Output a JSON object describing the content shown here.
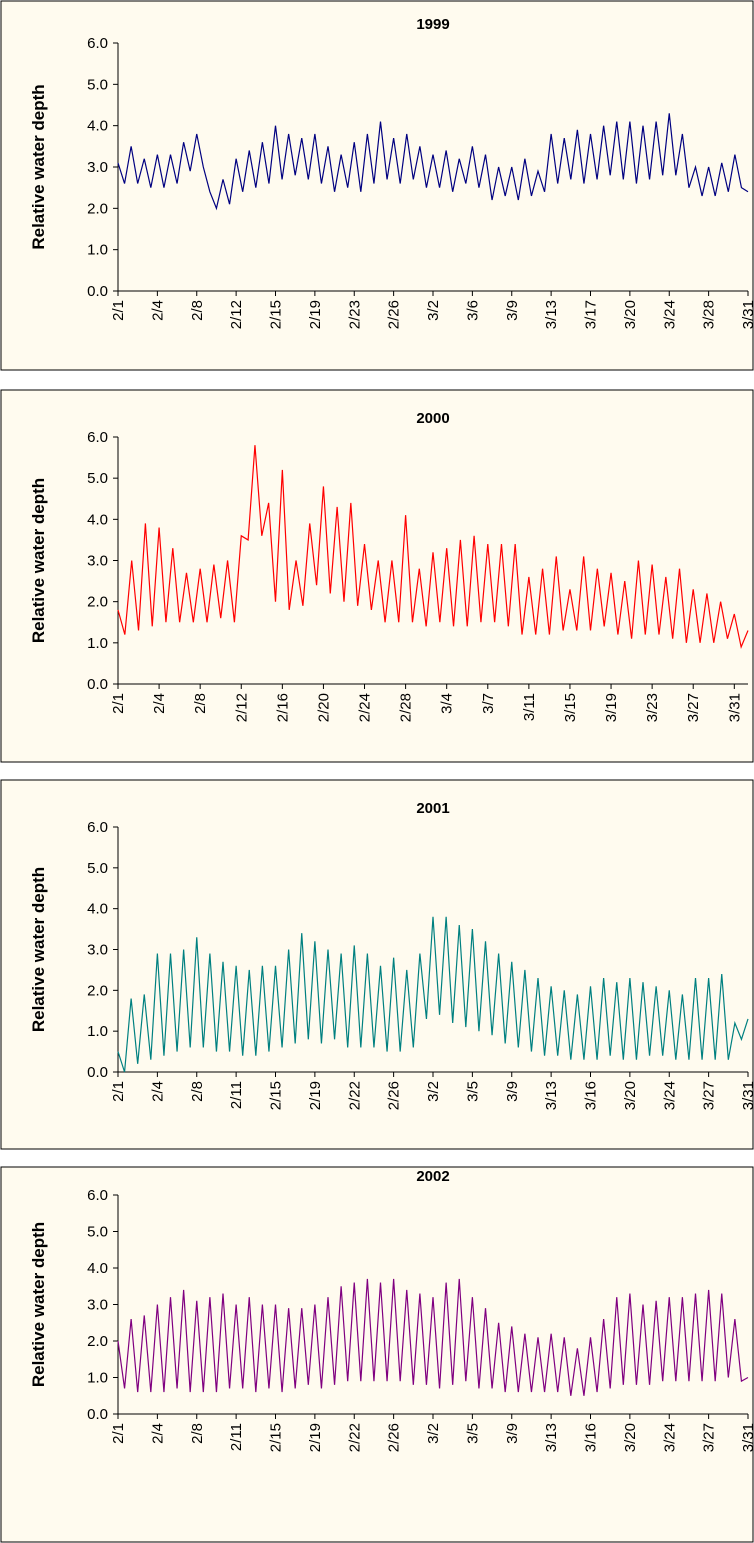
{
  "chart_data": [
    {
      "type": "line",
      "title": "1999",
      "ylabel": "Relative water depth",
      "color": "#000080",
      "ylim": [
        0,
        6
      ],
      "yticks": [
        {
          "value": 0,
          "label": "0.0"
        },
        {
          "value": 1,
          "label": "1.0"
        },
        {
          "value": 2,
          "label": "2.0"
        },
        {
          "value": 3,
          "label": "3.0"
        },
        {
          "value": 4,
          "label": "4.0"
        },
        {
          "value": 5,
          "label": "5.0"
        },
        {
          "value": 6,
          "label": "6.0"
        }
      ],
      "categories": [
        "2/1",
        null,
        null,
        null,
        null,
        null,
        "2/4",
        null,
        null,
        null,
        null,
        null,
        "2/8",
        null,
        null,
        null,
        null,
        null,
        "2/12",
        null,
        null,
        null,
        null,
        null,
        "2/15",
        null,
        null,
        null,
        null,
        null,
        "2/19",
        null,
        null,
        null,
        null,
        null,
        "2/23",
        null,
        null,
        null,
        null,
        null,
        "2/26",
        null,
        null,
        null,
        null,
        null,
        "3/2",
        null,
        null,
        null,
        null,
        null,
        "3/6",
        null,
        null,
        null,
        null,
        null,
        "3/9",
        null,
        null,
        null,
        null,
        null,
        "3/13",
        null,
        null,
        null,
        null,
        null,
        "3/17",
        null,
        null,
        null,
        null,
        null,
        "3/20",
        null,
        null,
        null,
        null,
        null,
        "3/24",
        null,
        null,
        null,
        null,
        null,
        "3/28",
        null,
        null,
        null,
        null,
        null,
        "3/31"
      ],
      "values": [
        3.1,
        2.6,
        3.5,
        2.6,
        3.2,
        2.5,
        3.3,
        2.5,
        3.3,
        2.6,
        3.6,
        2.9,
        3.8,
        3.0,
        2.4,
        2.0,
        2.7,
        2.1,
        3.2,
        2.4,
        3.4,
        2.5,
        3.6,
        2.6,
        4.0,
        2.7,
        3.8,
        2.8,
        3.7,
        2.7,
        3.8,
        2.6,
        3.5,
        2.4,
        3.3,
        2.5,
        3.6,
        2.4,
        3.8,
        2.6,
        4.1,
        2.7,
        3.7,
        2.6,
        3.8,
        2.7,
        3.5,
        2.5,
        3.3,
        2.5,
        3.4,
        2.4,
        3.2,
        2.6,
        3.5,
        2.5,
        3.3,
        2.2,
        3.0,
        2.3,
        3.0,
        2.2,
        3.2,
        2.3,
        2.9,
        2.4,
        3.8,
        2.6,
        3.7,
        2.7,
        3.9,
        2.6,
        3.8,
        2.7,
        4.0,
        2.8,
        4.1,
        2.7,
        4.1,
        2.6,
        4.0,
        2.7,
        4.1,
        2.8,
        4.3,
        2.8,
        3.8,
        2.5,
        3.0,
        2.3,
        3.0,
        2.3,
        3.1,
        2.4,
        3.3,
        2.5,
        2.4
      ]
    },
    {
      "type": "line",
      "title": "2000",
      "ylabel": "Relative water depth",
      "color": "#ff0000",
      "ylim": [
        0,
        6
      ],
      "yticks": [
        {
          "value": 0,
          "label": "0.0"
        },
        {
          "value": 1,
          "label": "1.0"
        },
        {
          "value": 2,
          "label": "2.0"
        },
        {
          "value": 3,
          "label": "3.0"
        },
        {
          "value": 4,
          "label": "4.0"
        },
        {
          "value": 5,
          "label": "5.0"
        },
        {
          "value": 6,
          "label": "6.0"
        }
      ],
      "categories": [
        "2/1",
        null,
        null,
        null,
        null,
        null,
        "2/4",
        null,
        null,
        null,
        null,
        null,
        "2/8",
        null,
        null,
        null,
        null,
        null,
        "2/12",
        null,
        null,
        null,
        null,
        null,
        "2/16",
        null,
        null,
        null,
        null,
        null,
        "2/20",
        null,
        null,
        null,
        null,
        null,
        "2/24",
        null,
        null,
        null,
        null,
        null,
        "2/28",
        null,
        null,
        null,
        null,
        null,
        "3/4",
        null,
        null,
        null,
        null,
        null,
        "3/7",
        null,
        null,
        null,
        null,
        null,
        "3/11",
        null,
        null,
        null,
        null,
        null,
        "3/15",
        null,
        null,
        null,
        null,
        null,
        "3/19",
        null,
        null,
        null,
        null,
        null,
        "3/23",
        null,
        null,
        null,
        null,
        null,
        "3/27",
        null,
        null,
        null,
        null,
        null,
        "3/31",
        null,
        null
      ],
      "values": [
        1.8,
        1.2,
        3.0,
        1.3,
        3.9,
        1.4,
        3.8,
        1.5,
        3.3,
        1.5,
        2.7,
        1.5,
        2.8,
        1.5,
        2.9,
        1.6,
        3.0,
        1.5,
        3.6,
        3.5,
        5.8,
        3.6,
        4.4,
        2.0,
        5.2,
        1.8,
        3.0,
        1.9,
        3.9,
        2.4,
        4.8,
        2.2,
        4.3,
        2.0,
        4.4,
        1.9,
        3.4,
        1.8,
        3.0,
        1.5,
        3.0,
        1.5,
        4.1,
        1.5,
        2.8,
        1.4,
        3.2,
        1.5,
        3.3,
        1.4,
        3.5,
        1.4,
        3.6,
        1.5,
        3.4,
        1.5,
        3.4,
        1.4,
        3.4,
        1.2,
        2.6,
        1.2,
        2.8,
        1.2,
        3.1,
        1.3,
        2.3,
        1.3,
        3.1,
        1.3,
        2.8,
        1.4,
        2.7,
        1.2,
        2.5,
        1.1,
        3.0,
        1.2,
        2.9,
        1.2,
        2.6,
        1.1,
        2.8,
        1.0,
        2.3,
        1.0,
        2.2,
        1.0,
        2.0,
        1.1,
        1.7,
        0.9,
        1.3
      ]
    },
    {
      "type": "line",
      "title": "2001",
      "ylabel": "Relative water depth",
      "color": "#008080",
      "ylim": [
        0,
        6
      ],
      "yticks": [
        {
          "value": 0,
          "label": "0.0"
        },
        {
          "value": 1,
          "label": "1.0"
        },
        {
          "value": 2,
          "label": "2.0"
        },
        {
          "value": 3,
          "label": "3.0"
        },
        {
          "value": 4,
          "label": "4.0"
        },
        {
          "value": 5,
          "label": "5.0"
        },
        {
          "value": 6,
          "label": "6.0"
        }
      ],
      "categories": [
        "2/1",
        null,
        null,
        null,
        null,
        null,
        "2/4",
        null,
        null,
        null,
        null,
        null,
        "2/8",
        null,
        null,
        null,
        null,
        null,
        "2/11",
        null,
        null,
        null,
        null,
        null,
        "2/15",
        null,
        null,
        null,
        null,
        null,
        "2/19",
        null,
        null,
        null,
        null,
        null,
        "2/22",
        null,
        null,
        null,
        null,
        null,
        "2/26",
        null,
        null,
        null,
        null,
        null,
        "3/2",
        null,
        null,
        null,
        null,
        null,
        "3/5",
        null,
        null,
        null,
        null,
        null,
        "3/9",
        null,
        null,
        null,
        null,
        null,
        "3/13",
        null,
        null,
        null,
        null,
        null,
        "3/16",
        null,
        null,
        null,
        null,
        null,
        "3/20",
        null,
        null,
        null,
        null,
        null,
        "3/24",
        null,
        null,
        null,
        null,
        null,
        "3/27",
        null,
        null,
        null,
        null,
        null,
        "3/31"
      ],
      "values": [
        0.5,
        0.0,
        1.8,
        0.2,
        1.9,
        0.3,
        2.9,
        0.4,
        2.9,
        0.5,
        3.0,
        0.6,
        3.3,
        0.6,
        2.9,
        0.5,
        2.7,
        0.5,
        2.6,
        0.4,
        2.5,
        0.4,
        2.6,
        0.5,
        2.6,
        0.6,
        3.0,
        0.7,
        3.4,
        0.8,
        3.2,
        0.7,
        3.0,
        0.8,
        2.9,
        0.6,
        3.1,
        0.6,
        2.9,
        0.6,
        2.6,
        0.5,
        2.8,
        0.5,
        2.5,
        0.6,
        2.9,
        1.3,
        3.8,
        1.4,
        3.8,
        1.2,
        3.6,
        1.1,
        3.5,
        1.0,
        3.2,
        0.9,
        2.9,
        0.7,
        2.7,
        0.6,
        2.5,
        0.5,
        2.3,
        0.4,
        2.1,
        0.4,
        2.0,
        0.3,
        1.9,
        0.3,
        2.1,
        0.3,
        2.3,
        0.4,
        2.2,
        0.3,
        2.3,
        0.3,
        2.2,
        0.4,
        2.1,
        0.4,
        2.0,
        0.3,
        1.9,
        0.3,
        2.3,
        0.3,
        2.3,
        0.3,
        2.4,
        0.3,
        1.2,
        0.8,
        1.3
      ]
    },
    {
      "type": "line",
      "title": "2002",
      "ylabel": "Relative water depth",
      "color": "#800080",
      "ylim": [
        0,
        6
      ],
      "yticks": [
        {
          "value": 0,
          "label": "0.0"
        },
        {
          "value": 1,
          "label": "1.0"
        },
        {
          "value": 2,
          "label": "2.0"
        },
        {
          "value": 3,
          "label": "3.0"
        },
        {
          "value": 4,
          "label": "4.0"
        },
        {
          "value": 5,
          "label": "5.0"
        },
        {
          "value": 6,
          "label": "6.0"
        }
      ],
      "categories": [
        "2/1",
        null,
        null,
        null,
        null,
        null,
        "2/4",
        null,
        null,
        null,
        null,
        null,
        "2/8",
        null,
        null,
        null,
        null,
        null,
        "2/11",
        null,
        null,
        null,
        null,
        null,
        "2/15",
        null,
        null,
        null,
        null,
        null,
        "2/19",
        null,
        null,
        null,
        null,
        null,
        "2/22",
        null,
        null,
        null,
        null,
        null,
        "2/26",
        null,
        null,
        null,
        null,
        null,
        "3/2",
        null,
        null,
        null,
        null,
        null,
        "3/5",
        null,
        null,
        null,
        null,
        null,
        "3/9",
        null,
        null,
        null,
        null,
        null,
        "3/13",
        null,
        null,
        null,
        null,
        null,
        "3/16",
        null,
        null,
        null,
        null,
        null,
        "3/20",
        null,
        null,
        null,
        null,
        null,
        "3/24",
        null,
        null,
        null,
        null,
        null,
        "3/27",
        null,
        null,
        null,
        null,
        null,
        "3/31"
      ],
      "values": [
        2.0,
        0.7,
        2.6,
        0.6,
        2.7,
        0.6,
        3.0,
        0.6,
        3.2,
        0.7,
        3.4,
        0.6,
        3.1,
        0.6,
        3.2,
        0.6,
        3.3,
        0.7,
        3.0,
        0.7,
        3.2,
        0.6,
        3.0,
        0.7,
        3.0,
        0.6,
        2.9,
        0.7,
        2.9,
        0.8,
        3.0,
        0.7,
        3.2,
        0.8,
        3.5,
        0.9,
        3.6,
        0.9,
        3.7,
        0.9,
        3.6,
        0.9,
        3.7,
        0.9,
        3.4,
        0.8,
        3.3,
        0.8,
        3.2,
        0.7,
        3.6,
        0.8,
        3.7,
        0.9,
        3.2,
        0.7,
        2.9,
        0.7,
        2.5,
        0.6,
        2.4,
        0.6,
        2.2,
        0.6,
        2.1,
        0.6,
        2.2,
        0.6,
        2.1,
        0.5,
        1.8,
        0.5,
        2.1,
        0.6,
        2.6,
        0.7,
        3.2,
        0.8,
        3.3,
        0.8,
        3.0,
        0.8,
        3.1,
        0.9,
        3.2,
        0.9,
        3.2,
        0.9,
        3.3,
        0.9,
        3.4,
        0.9,
        3.3,
        1.0,
        2.6,
        0.9,
        1.0
      ]
    }
  ]
}
